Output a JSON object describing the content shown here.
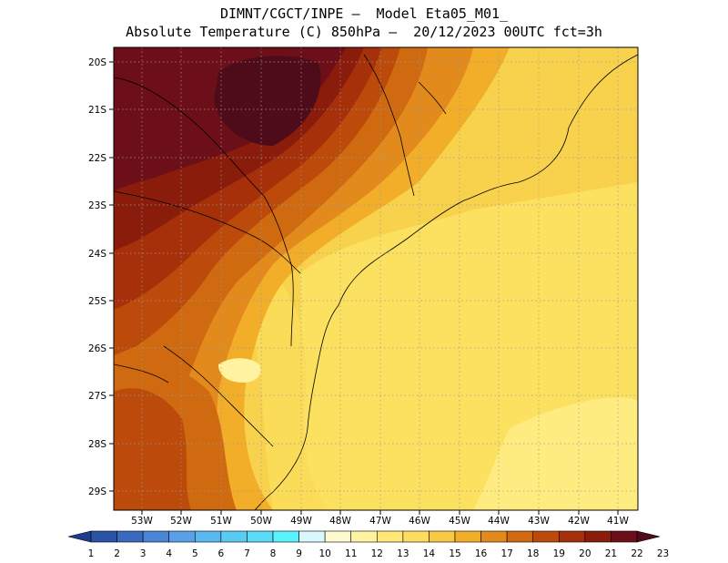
{
  "header": {
    "line1": "DIMNT/CGCT/INPE –  Model Eta05_M01_",
    "line2": "Absolute Temperature (C) 850hPa –  20/12/2023 00UTC fct=3h"
  },
  "map": {
    "lon_labels": [
      "53W",
      "52W",
      "51W",
      "50W",
      "49W",
      "48W",
      "47W",
      "46W",
      "45W",
      "44W",
      "43W",
      "42W",
      "41W"
    ],
    "lat_labels": [
      "20S",
      "21S",
      "22S",
      "23S",
      "24S",
      "25S",
      "26S",
      "27S",
      "28S",
      "29S"
    ]
  },
  "colorbar": {
    "labels": [
      "1",
      "2",
      "3",
      "4",
      "5",
      "6",
      "7",
      "8",
      "9",
      "10",
      "11",
      "12",
      "13",
      "14",
      "15",
      "16",
      "17",
      "18",
      "19",
      "20",
      "21",
      "22",
      "23"
    ],
    "colors": [
      "#1f3d8c",
      "#2a52a6",
      "#3a6ac0",
      "#4a86d6",
      "#5aa0e8",
      "#5ab8f0",
      "#5acbf5",
      "#5adcf8",
      "#5af2fc",
      "#d8f8fb",
      "#fefbd0",
      "#fff2a0",
      "#ffe878",
      "#fedc60",
      "#f8c843",
      "#f2ae28",
      "#e38a1c",
      "#d06a10",
      "#bc4a0a",
      "#a6300a",
      "#8a1c0c",
      "#6d0f18",
      "#4e0c1a"
    ]
  }
}
